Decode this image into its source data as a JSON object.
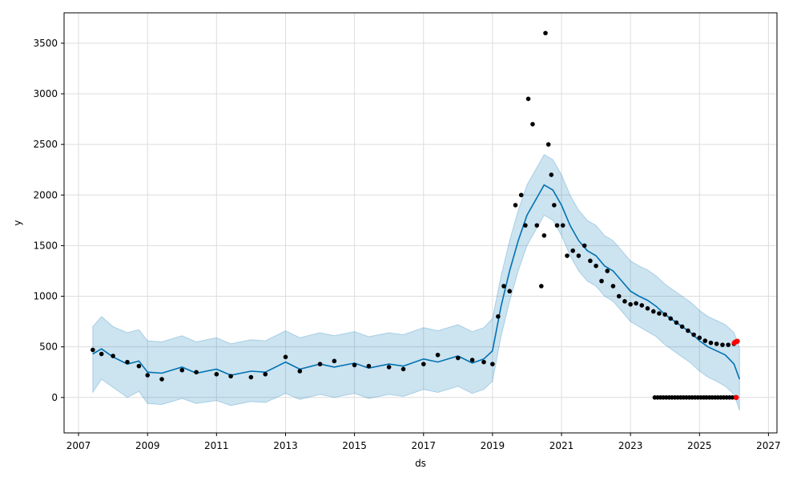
{
  "chart_data": {
    "type": "scatter",
    "title": "",
    "xlabel": "ds",
    "ylabel": "y",
    "xlim": [
      "2006-08-01",
      "2027-04-01"
    ],
    "ylim": [
      -350,
      3800
    ],
    "x_ticks": [
      "2007",
      "2009",
      "2011",
      "2013",
      "2015",
      "2017",
      "2019",
      "2021",
      "2023",
      "2025",
      "2027"
    ],
    "y_ticks": [
      0,
      500,
      1000,
      1500,
      2000,
      2500,
      3000,
      3500
    ],
    "grid": true,
    "colors": {
      "observed": "#000000",
      "forecast_line": "#0072B2",
      "uncertainty_band": "#0072B2",
      "highlight": "#ff0000",
      "grid": "#dddddd"
    },
    "series": [
      {
        "kind": "forecast",
        "x": [
          "2007-06-01",
          "2007-09-01",
          "2008-01-01",
          "2008-06-01",
          "2008-10-01",
          "2009-01-01",
          "2009-06-01",
          "2010-01-01",
          "2010-06-01",
          "2011-01-01",
          "2011-06-01",
          "2012-01-01",
          "2012-06-01",
          "2013-01-01",
          "2013-06-01",
          "2014-01-01",
          "2014-06-01",
          "2015-01-01",
          "2015-06-01",
          "2016-01-01",
          "2016-06-01",
          "2017-01-01",
          "2017-06-01",
          "2018-01-01",
          "2018-06-01",
          "2018-10-01",
          "2019-01-01",
          "2019-04-01",
          "2019-07-01",
          "2019-10-01",
          "2020-01-01",
          "2020-04-01",
          "2020-07-01",
          "2020-10-01",
          "2021-01-01",
          "2021-04-01",
          "2021-07-01",
          "2021-10-01",
          "2022-01-01",
          "2022-04-01",
          "2022-07-01",
          "2022-10-01",
          "2023-01-01",
          "2023-04-01",
          "2023-07-01",
          "2023-10-01",
          "2024-01-01",
          "2024-04-01",
          "2024-07-01",
          "2024-10-01",
          "2025-01-01",
          "2025-04-01",
          "2025-07-01",
          "2025-10-01",
          "2026-01-01",
          "2026-03-01"
        ],
        "yhat": [
          430,
          480,
          400,
          330,
          360,
          250,
          240,
          300,
          240,
          280,
          220,
          260,
          250,
          350,
          280,
          330,
          300,
          340,
          290,
          330,
          310,
          380,
          350,
          410,
          340,
          380,
          460,
          900,
          1250,
          1550,
          1800,
          1950,
          2100,
          2050,
          1900,
          1700,
          1550,
          1450,
          1400,
          1300,
          1250,
          1150,
          1050,
          1000,
          960,
          900,
          820,
          760,
          700,
          640,
          560,
          500,
          460,
          420,
          330,
          180
        ],
        "yhat_lower": [
          50,
          180,
          100,
          0,
          60,
          -60,
          -70,
          -10,
          -60,
          -30,
          -80,
          -40,
          -50,
          40,
          -20,
          30,
          0,
          40,
          -10,
          30,
          10,
          80,
          50,
          110,
          40,
          80,
          160,
          600,
          950,
          1250,
          1500,
          1650,
          1800,
          1750,
          1600,
          1400,
          1250,
          1150,
          1100,
          1000,
          950,
          850,
          750,
          700,
          650,
          600,
          520,
          460,
          400,
          340,
          260,
          200,
          160,
          110,
          30,
          -130
        ],
        "yhat_upper": [
          700,
          800,
          700,
          640,
          670,
          560,
          550,
          610,
          550,
          590,
          530,
          570,
          560,
          660,
          590,
          640,
          610,
          650,
          600,
          640,
          620,
          690,
          660,
          720,
          650,
          690,
          780,
          1200,
          1550,
          1850,
          2100,
          2250,
          2400,
          2350,
          2200,
          2000,
          1850,
          1750,
          1700,
          1600,
          1550,
          1450,
          1350,
          1300,
          1260,
          1200,
          1120,
          1060,
          1000,
          940,
          860,
          800,
          760,
          720,
          640,
          490
        ]
      },
      {
        "kind": "observed",
        "x": [
          "2007-06-01",
          "2007-09-01",
          "2008-01-01",
          "2008-06-01",
          "2008-10-01",
          "2009-01-01",
          "2009-06-01",
          "2010-01-01",
          "2010-06-01",
          "2011-01-01",
          "2011-06-01",
          "2012-01-01",
          "2012-06-01",
          "2013-01-01",
          "2013-06-01",
          "2014-01-01",
          "2014-06-01",
          "2015-01-01",
          "2015-06-01",
          "2016-01-01",
          "2016-06-01",
          "2017-01-01",
          "2017-06-01",
          "2018-01-01",
          "2018-06-01",
          "2018-10-01",
          "2019-01-01",
          "2019-03-01",
          "2019-05-01",
          "2019-07-01",
          "2019-09-01",
          "2019-11-01",
          "2019-12-15",
          "2020-01-15",
          "2020-03-01",
          "2020-04-15",
          "2020-06-01",
          "2020-07-01",
          "2020-07-15",
          "2020-08-15",
          "2020-09-15",
          "2020-10-15",
          "2020-11-15",
          "2021-01-15",
          "2021-03-01",
          "2021-05-01",
          "2021-07-01",
          "2021-09-01",
          "2021-11-01",
          "2022-01-01",
          "2022-03-01",
          "2022-05-01",
          "2022-07-01",
          "2022-09-01",
          "2022-11-01",
          "2023-01-01",
          "2023-03-01",
          "2023-05-01",
          "2023-07-01",
          "2023-09-01",
          "2023-11-01",
          "2024-01-01",
          "2024-03-01",
          "2024-05-01",
          "2024-07-01",
          "2024-09-01",
          "2024-11-01",
          "2025-01-01",
          "2025-03-01",
          "2025-05-01",
          "2025-07-01",
          "2025-09-01",
          "2025-11-01",
          "2026-01-01"
        ],
        "y": [
          470,
          430,
          410,
          350,
          310,
          220,
          180,
          270,
          250,
          230,
          210,
          200,
          230,
          400,
          260,
          330,
          360,
          320,
          310,
          300,
          280,
          330,
          420,
          390,
          370,
          350,
          330,
          800,
          1100,
          1050,
          1900,
          2000,
          1700,
          2950,
          2700,
          1700,
          1100,
          1600,
          3600,
          2500,
          2200,
          1900,
          1700,
          1700,
          1400,
          1450,
          1400,
          1500,
          1350,
          1300,
          1150,
          1250,
          1100,
          1000,
          950,
          920,
          930,
          910,
          880,
          850,
          830,
          820,
          780,
          740,
          700,
          660,
          620,
          590,
          560,
          540,
          530,
          520,
          520,
          530
        ]
      },
      {
        "kind": "observed_zero",
        "x": [
          "2023-09-15",
          "2023-10-15",
          "2023-11-15",
          "2023-12-15",
          "2024-01-15",
          "2024-02-15",
          "2024-03-15",
          "2024-04-15",
          "2024-05-15",
          "2024-06-15",
          "2024-07-15",
          "2024-08-15",
          "2024-09-15",
          "2024-10-15",
          "2024-11-15",
          "2024-12-15",
          "2025-01-15",
          "2025-02-15",
          "2025-03-15",
          "2025-04-15",
          "2025-05-15",
          "2025-06-15",
          "2025-07-15",
          "2025-08-15",
          "2025-09-15",
          "2025-10-15",
          "2025-11-15",
          "2025-12-15",
          "2026-01-15"
        ],
        "y": [
          0,
          0,
          0,
          0,
          0,
          0,
          0,
          0,
          0,
          0,
          0,
          0,
          0,
          0,
          0,
          0,
          0,
          0,
          0,
          0,
          0,
          0,
          0,
          0,
          0,
          0,
          0,
          0,
          0
        ]
      },
      {
        "kind": "highlight",
        "x": [
          "2026-01-05",
          "2026-01-20",
          "2026-02-05",
          "2026-01-25"
        ],
        "y": [
          540,
          550,
          555,
          0
        ]
      }
    ]
  }
}
